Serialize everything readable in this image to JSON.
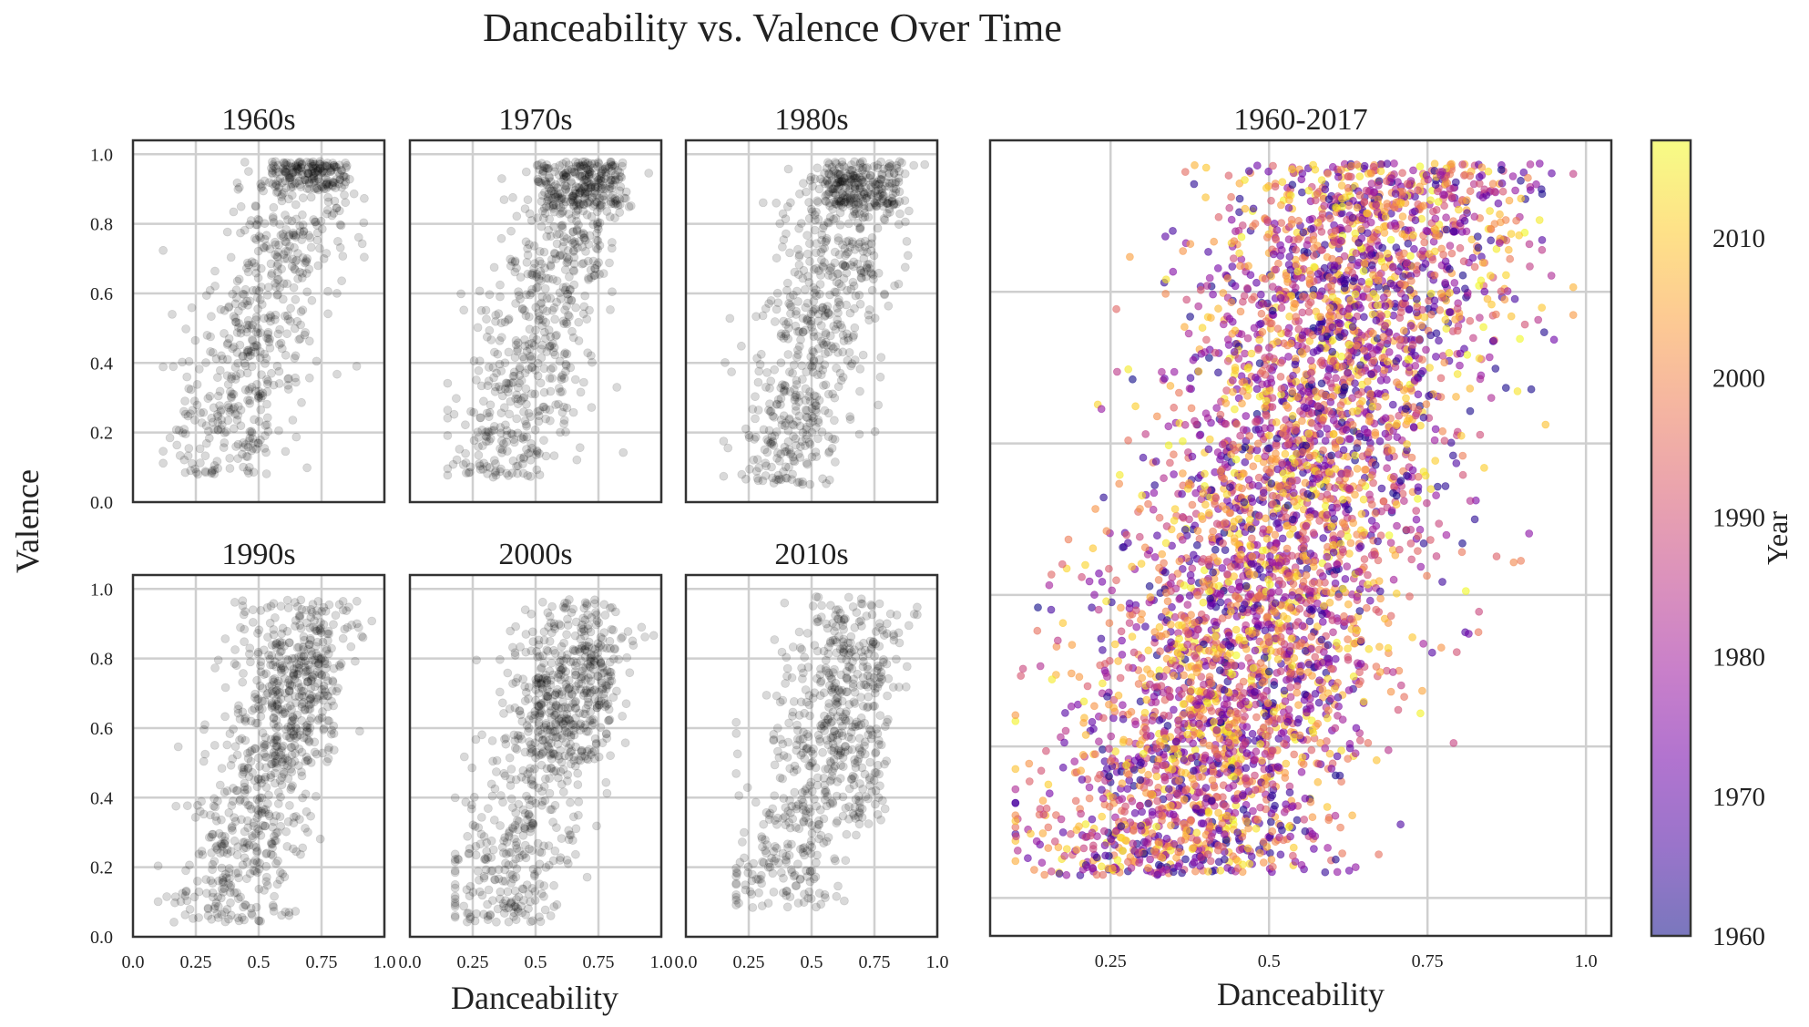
{
  "title": "Danceability vs. Valence Over Time",
  "shared_xlabel": "Danceability",
  "shared_ylabel": "Valence",
  "chart_data": [
    {
      "type": "scatter",
      "title": "1960s",
      "xlim": [
        0.0,
        1.0
      ],
      "ylim": [
        0.0,
        1.04
      ],
      "xticks": [
        "0.0",
        "0.25",
        "0.5",
        "0.75",
        "1.0"
      ],
      "yticks": [
        "0.0",
        "0.2",
        "0.4",
        "0.6",
        "0.8",
        "1.0"
      ],
      "grid": true,
      "marker_color": "#000000",
      "marker_alpha": 0.15,
      "point_count": 700,
      "distribution": {
        "x_range": [
          0.12,
          0.92
        ],
        "y_range": [
          0.08,
          0.98
        ],
        "dense_cluster": {
          "x": [
            0.55,
            0.85
          ],
          "y": [
            0.9,
            0.98
          ]
        }
      }
    },
    {
      "type": "scatter",
      "title": "1970s",
      "xlim": [
        0.0,
        1.0
      ],
      "ylim": [
        0.0,
        1.04
      ],
      "xticks": [
        "0.0",
        "0.25",
        "0.5",
        "0.75",
        "1.0"
      ],
      "yticks": [
        "0.0",
        "0.2",
        "0.4",
        "0.6",
        "0.8",
        "1.0"
      ],
      "grid": true,
      "marker_color": "#000000",
      "marker_alpha": 0.15,
      "point_count": 800,
      "distribution": {
        "x_range": [
          0.15,
          0.95
        ],
        "y_range": [
          0.07,
          0.98
        ],
        "dense_cluster": {
          "x": [
            0.5,
            0.85
          ],
          "y": [
            0.85,
            0.98
          ]
        }
      }
    },
    {
      "type": "scatter",
      "title": "1980s",
      "xlim": [
        0.0,
        1.0
      ],
      "ylim": [
        0.0,
        1.04
      ],
      "xticks": [
        "0.0",
        "0.25",
        "0.5",
        "0.75",
        "1.0"
      ],
      "yticks": [
        "0.0",
        "0.2",
        "0.4",
        "0.6",
        "0.8",
        "1.0"
      ],
      "grid": true,
      "marker_color": "#000000",
      "marker_alpha": 0.15,
      "point_count": 800,
      "distribution": {
        "x_range": [
          0.15,
          0.95
        ],
        "y_range": [
          0.05,
          0.98
        ],
        "dense_cluster": {
          "x": [
            0.55,
            0.85
          ],
          "y": [
            0.85,
            0.98
          ]
        }
      }
    },
    {
      "type": "scatter",
      "title": "1990s",
      "xlim": [
        0.0,
        1.0
      ],
      "ylim": [
        0.0,
        1.04
      ],
      "xticks": [
        "0.0",
        "0.25",
        "0.5",
        "0.75",
        "1.0"
      ],
      "yticks": [
        "0.0",
        "0.2",
        "0.4",
        "0.6",
        "0.8",
        "1.0"
      ],
      "grid": true,
      "marker_color": "#000000",
      "marker_alpha": 0.15,
      "point_count": 800,
      "distribution": {
        "x_range": [
          0.1,
          0.95
        ],
        "y_range": [
          0.04,
          0.97
        ],
        "dense_cluster": {
          "x": [
            0.55,
            0.8
          ],
          "y": [
            0.5,
            0.85
          ]
        }
      }
    },
    {
      "type": "scatter",
      "title": "2000s",
      "xlim": [
        0.0,
        1.0
      ],
      "ylim": [
        0.0,
        1.04
      ],
      "xticks": [
        "0.0",
        "0.25",
        "0.5",
        "0.75",
        "1.0"
      ],
      "yticks": [
        "0.0",
        "0.2",
        "0.4",
        "0.6",
        "0.8",
        "1.0"
      ],
      "grid": true,
      "marker_color": "#000000",
      "marker_alpha": 0.15,
      "point_count": 800,
      "distribution": {
        "x_range": [
          0.18,
          0.97
        ],
        "y_range": [
          0.04,
          0.97
        ],
        "dense_cluster": {
          "x": [
            0.5,
            0.8
          ],
          "y": [
            0.5,
            0.85
          ]
        }
      }
    },
    {
      "type": "scatter",
      "title": "2010s",
      "xlim": [
        0.0,
        1.0
      ],
      "ylim": [
        0.0,
        1.04
      ],
      "xticks": [
        "0.0",
        "0.25",
        "0.5",
        "0.75",
        "1.0"
      ],
      "yticks": [
        "0.0",
        "0.2",
        "0.4",
        "0.6",
        "0.8",
        "1.0"
      ],
      "grid": true,
      "marker_color": "#000000",
      "marker_alpha": 0.15,
      "point_count": 650,
      "distribution": {
        "x_range": [
          0.2,
          0.92
        ],
        "y_range": [
          0.08,
          0.98
        ],
        "dense_cluster": {
          "x": [
            0.55,
            0.8
          ],
          "y": [
            0.35,
            0.85
          ]
        }
      }
    },
    {
      "type": "scatter",
      "title": "1960-2017",
      "xlim": [
        0.06,
        1.04
      ],
      "ylim": [
        -0.05,
        1.0
      ],
      "xticks": [
        "0.25",
        "0.5",
        "0.75",
        "1.0"
      ],
      "xlabel": "Danceability",
      "grid": true,
      "marker_alpha": 0.6,
      "colormap": "plasma",
      "color_by": "Year",
      "color_range": [
        1960,
        2017
      ],
      "point_count": 4500,
      "distribution": {
        "x_range": [
          0.1,
          0.98
        ],
        "y_range": [
          0.03,
          0.97
        ]
      }
    }
  ],
  "colorbar": {
    "label": "Year",
    "ticks": [
      "1960",
      "1970",
      "1980",
      "1990",
      "2000",
      "2010"
    ],
    "range": [
      1960,
      2017
    ],
    "colormap": "plasma",
    "colors": [
      "#0d0887",
      "#46039f",
      "#7201a8",
      "#9c179e",
      "#bd3786",
      "#d8576b",
      "#ed7953",
      "#fb9f3a",
      "#fdca26",
      "#f0f921"
    ],
    "alpha": 0.55
  }
}
